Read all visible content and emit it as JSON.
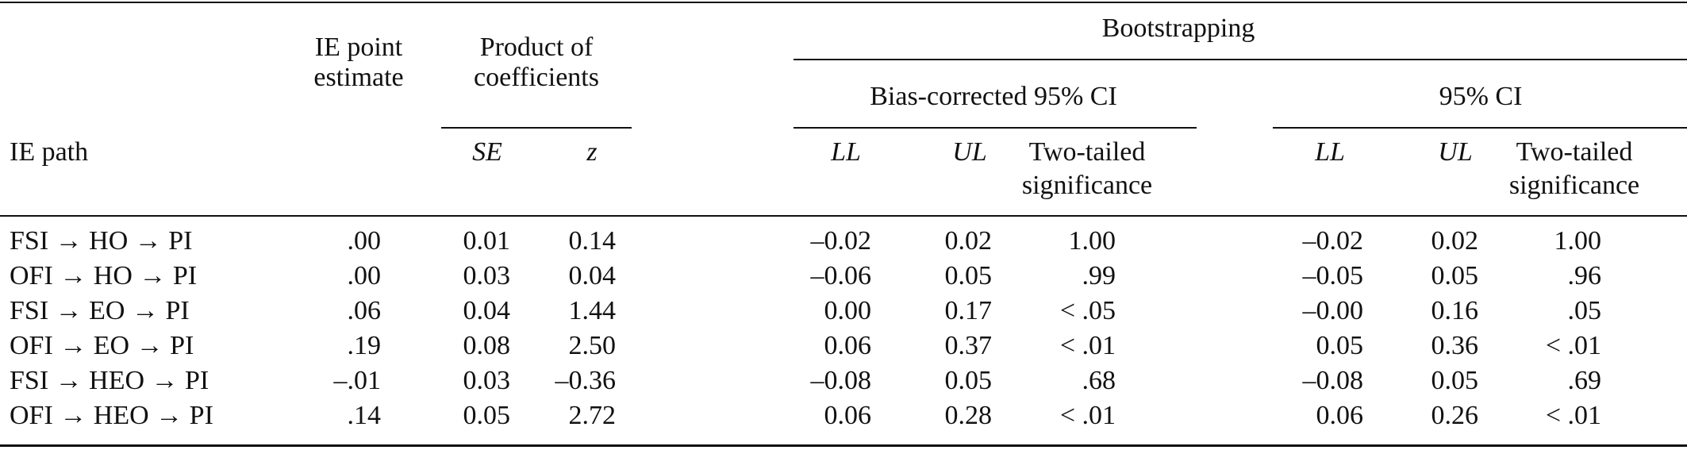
{
  "header": {
    "ie_point_line1": "IE point",
    "ie_point_line2": "estimate",
    "product_line1": "Product of",
    "product_line2": "coefficients",
    "bootstrapping": "Bootstrapping",
    "bias_corrected": "Bias-corrected 95% CI",
    "ci95": "95% CI",
    "ie_path": "IE path",
    "se": "SE",
    "z": "z",
    "ll": "LL",
    "ul": "UL",
    "two_tailed_line1": "Two-tailed",
    "two_tailed_line2": "significance"
  },
  "rows": [
    {
      "path": "FSI → HO → PI",
      "est": ".00",
      "se": "0.01",
      "z": "0.14",
      "bc_ll": "–0.02",
      "bc_ul": "0.02",
      "bc_sig": "1.00",
      "ci_ll": "–0.02",
      "ci_ul": "0.02",
      "ci_sig": "1.00"
    },
    {
      "path": "OFI → HO → PI",
      "est": ".00",
      "se": "0.03",
      "z": "0.04",
      "bc_ll": "–0.06",
      "bc_ul": "0.05",
      "bc_sig": ".99",
      "ci_ll": "–0.05",
      "ci_ul": "0.05",
      "ci_sig": ".96"
    },
    {
      "path": "FSI → EO → PI",
      "est": ".06",
      "se": "0.04",
      "z": "1.44",
      "bc_ll": "0.00",
      "bc_ul": "0.17",
      "bc_sig": "< .05",
      "ci_ll": "–0.00",
      "ci_ul": "0.16",
      "ci_sig": ".05"
    },
    {
      "path": "OFI → EO → PI",
      "est": ".19",
      "se": "0.08",
      "z": "2.50",
      "bc_ll": "0.06",
      "bc_ul": "0.37",
      "bc_sig": "< .01",
      "ci_ll": "0.05",
      "ci_ul": "0.36",
      "ci_sig": "< .01"
    },
    {
      "path": "FSI → HEO → PI",
      "est": "–.01",
      "se": "0.03",
      "z": "–0.36",
      "bc_ll": "–0.08",
      "bc_ul": "0.05",
      "bc_sig": ".68",
      "ci_ll": "–0.08",
      "ci_ul": "0.05",
      "ci_sig": ".69"
    },
    {
      "path": "OFI → HEO → PI",
      "est": ".14",
      "se": "0.05",
      "z": "2.72",
      "bc_ll": "0.06",
      "bc_ul": "0.28",
      "bc_sig": "< .01",
      "ci_ll": "0.06",
      "ci_ul": "0.26",
      "ci_sig": "< .01"
    }
  ]
}
